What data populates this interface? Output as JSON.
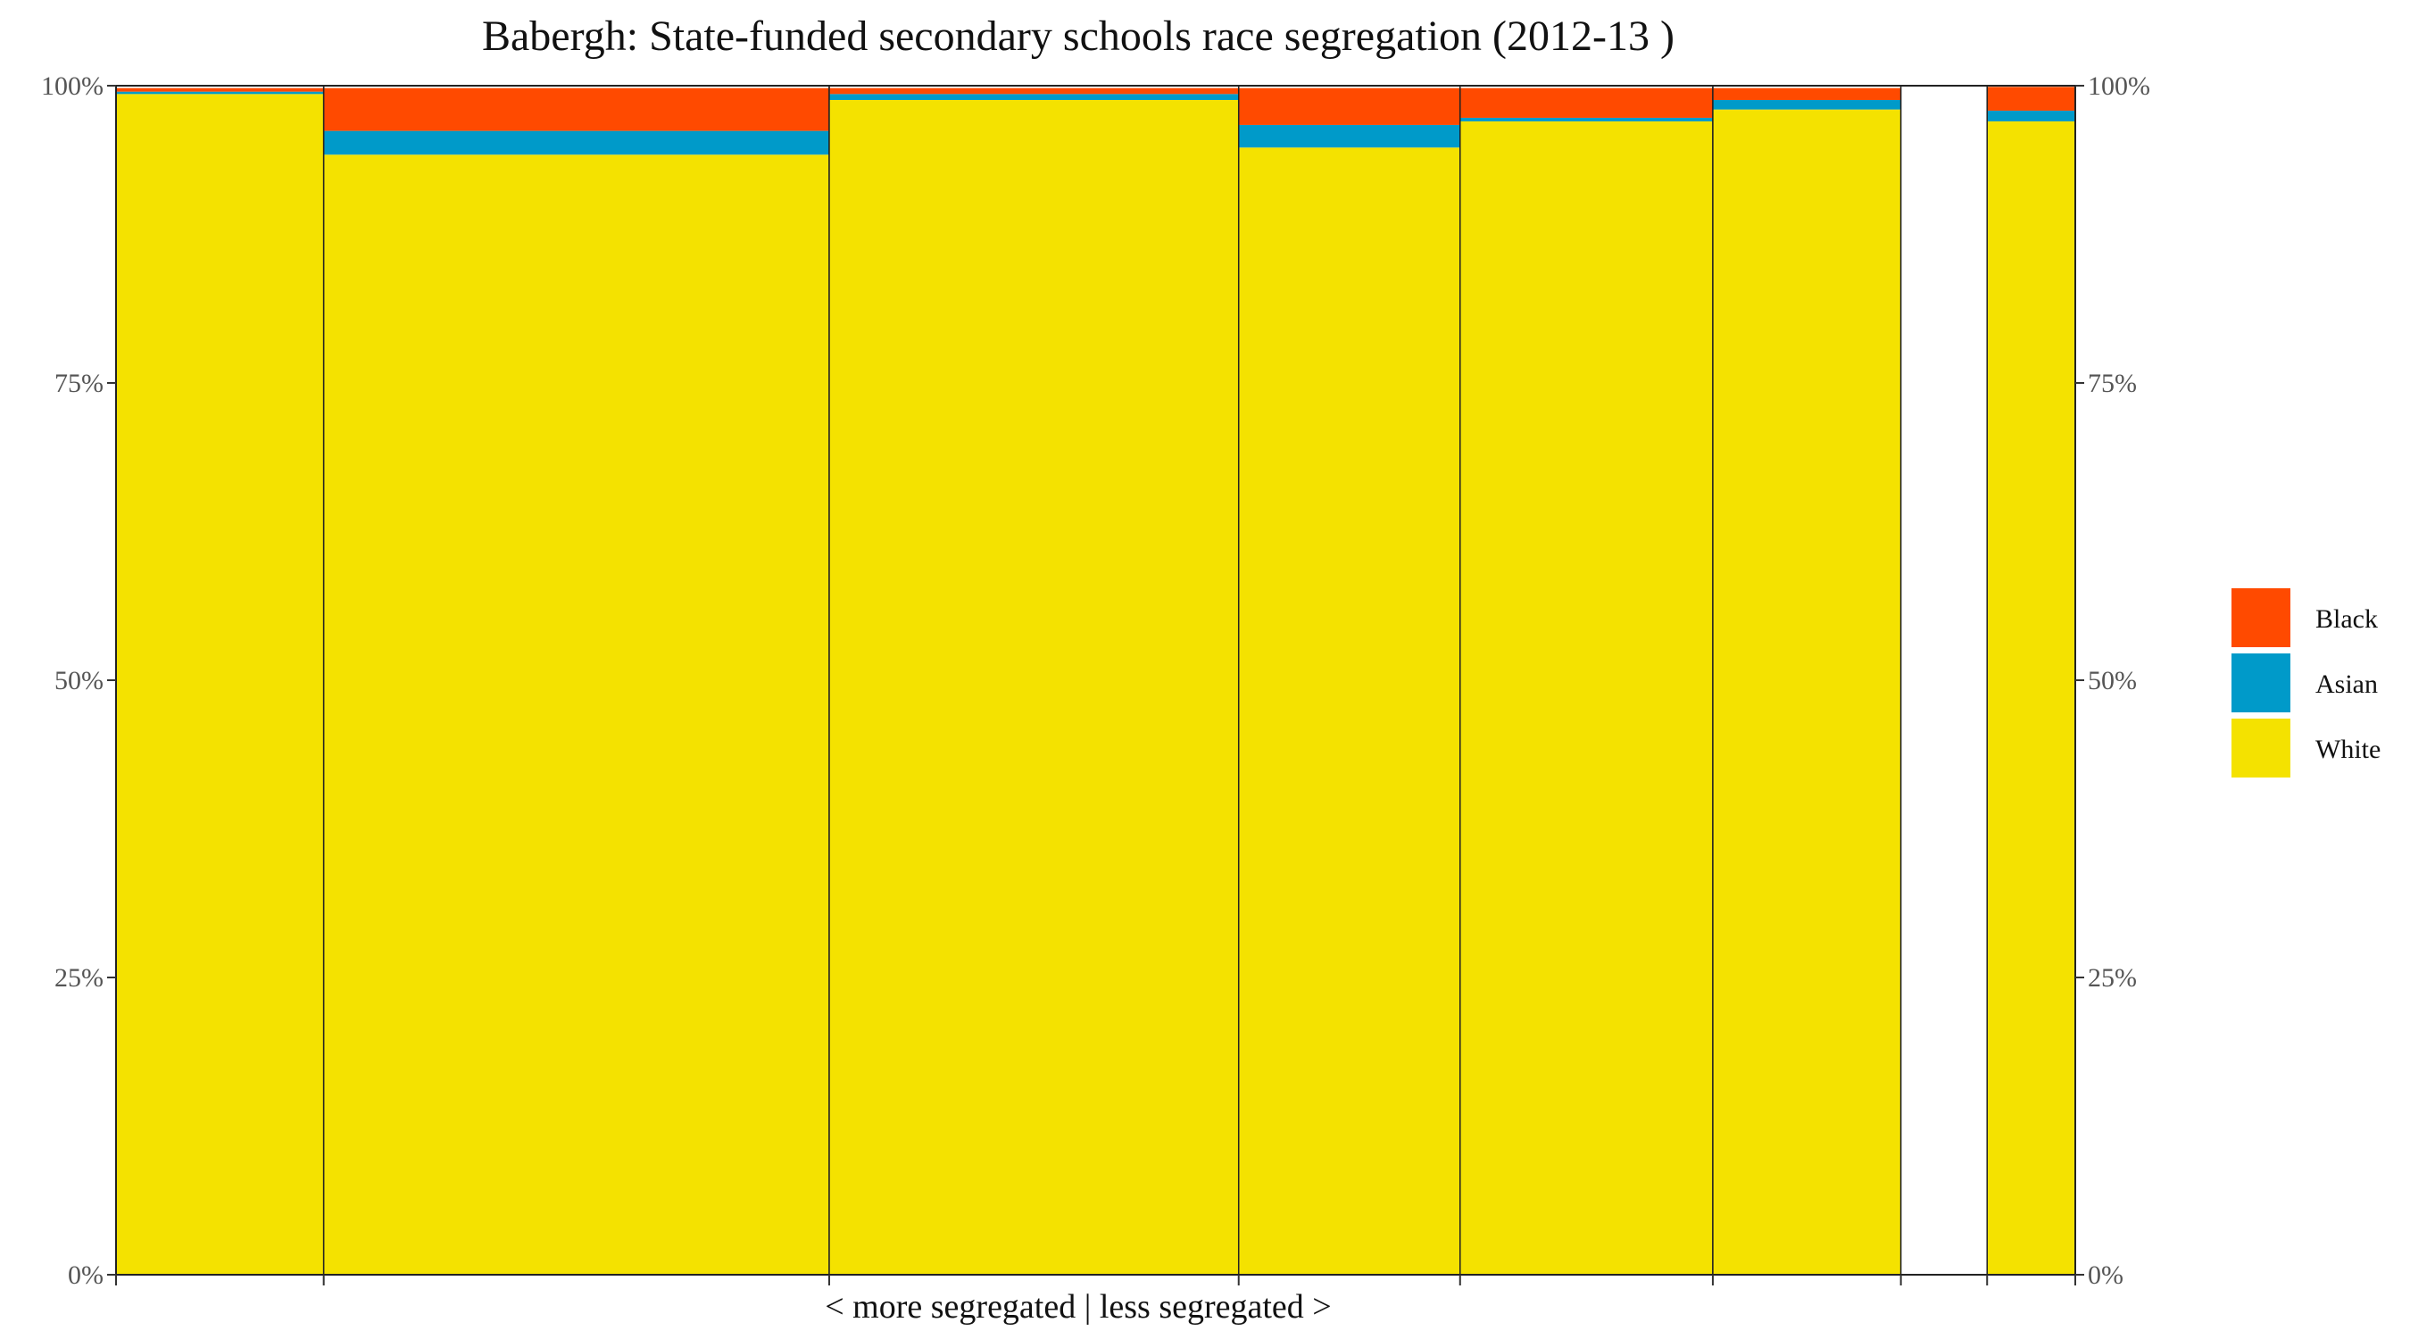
{
  "chart_data": {
    "type": "bar",
    "variant": "stacked-percent-variable-width",
    "title": "Babergh: State-funded secondary schools race segregation (2012-13 )",
    "xlabel": "< more segregated | less segregated >",
    "ylabel": "",
    "ylim": [
      0,
      100
    ],
    "y_ticks": [
      "0%",
      "25%",
      "50%",
      "75%",
      "100%"
    ],
    "secondary_y_axis": true,
    "grid": false,
    "legend_position": "right",
    "legend": [
      {
        "name": "Black",
        "color": "#FF4A00"
      },
      {
        "name": "Asian",
        "color": "#009AC9"
      },
      {
        "name": "White",
        "color": "#F4E200"
      }
    ],
    "stack_order": [
      "White",
      "Asian",
      "Black"
    ],
    "x_domain": [
      0,
      100
    ],
    "groups": [
      {
        "x_start": 0.0,
        "x_end": 10.6,
        "values": {
          "White": 99.3,
          "Asian": 0.2,
          "Black": 0.3
        }
      },
      {
        "x_start": 10.6,
        "x_end": 36.4,
        "values": {
          "White": 94.2,
          "Asian": 2.0,
          "Black": 3.6
        }
      },
      {
        "x_start": 36.4,
        "x_end": 57.3,
        "values": {
          "White": 98.8,
          "Asian": 0.5,
          "Black": 0.5
        }
      },
      {
        "x_start": 57.3,
        "x_end": 68.6,
        "values": {
          "White": 94.8,
          "Asian": 1.9,
          "Black": 3.1
        }
      },
      {
        "x_start": 68.6,
        "x_end": 81.5,
        "values": {
          "White": 97.0,
          "Asian": 0.3,
          "Black": 2.5
        }
      },
      {
        "x_start": 81.5,
        "x_end": 91.1,
        "values": {
          "White": 98.0,
          "Asian": 0.8,
          "Black": 1.0
        }
      },
      {
        "x_start": 95.5,
        "x_end": 100.0,
        "values": {
          "White": 97.0,
          "Asian": 0.9,
          "Black": 2.0
        }
      }
    ]
  }
}
